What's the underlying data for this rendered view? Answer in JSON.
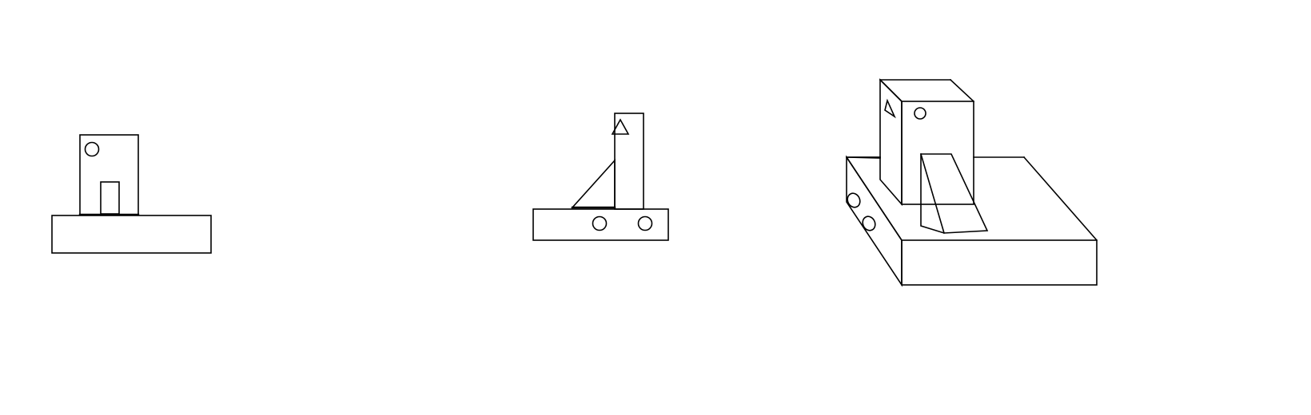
{
  "colors": {
    "background": "#ffffff",
    "stroke": "#000000"
  },
  "views": [
    {
      "id": "front-view"
    },
    {
      "id": "side-view"
    },
    {
      "id": "isometric-view"
    }
  ]
}
